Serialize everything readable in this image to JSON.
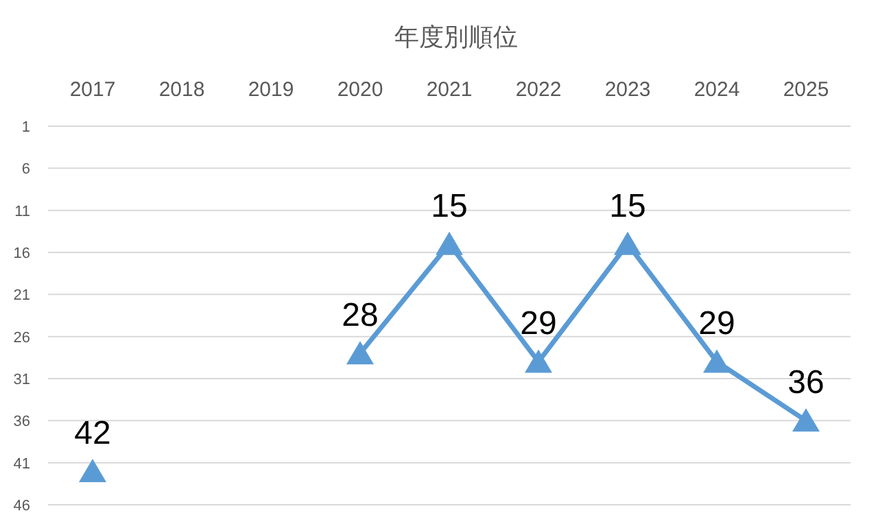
{
  "chart_data": {
    "type": "line",
    "title": "年度別順位",
    "categories": [
      "2017",
      "2018",
      "2019",
      "2020",
      "2021",
      "2022",
      "2023",
      "2024",
      "2025"
    ],
    "series": [
      {
        "color": "#5b9bd5",
        "values": [
          42,
          null,
          null,
          28,
          15,
          29,
          15,
          29,
          36
        ]
      }
    ],
    "ylim": [
      46,
      1
    ],
    "yticks": [
      1,
      6,
      11,
      16,
      21,
      26,
      31,
      36,
      41,
      46
    ],
    "grid": "y",
    "marker": "triangle",
    "line_style": "solid",
    "data_labels": true
  }
}
